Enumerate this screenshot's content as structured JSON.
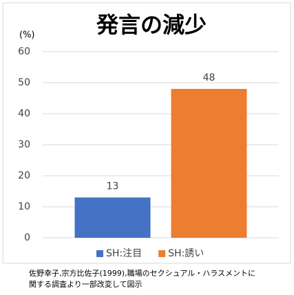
{
  "chart_data": {
    "type": "bar",
    "title": "発言の減少",
    "y_label": "(%)",
    "categories": [
      null
    ],
    "series": [
      {
        "name": "SH:注目",
        "color": "#4472c4",
        "values": [
          13
        ]
      },
      {
        "name": "SH:誘い",
        "color": "#ed7d31",
        "values": [
          48
        ]
      }
    ],
    "ylim": [
      0,
      60
    ],
    "yticks": [
      0,
      10,
      20,
      30,
      40,
      50,
      60
    ],
    "grid": true,
    "legend": "bottom",
    "source": [
      "佐野幸子,宗方比佐子(1999),職場のセクシュアル・ハラスメントに",
      "関する調査より一部改変して図示"
    ]
  }
}
